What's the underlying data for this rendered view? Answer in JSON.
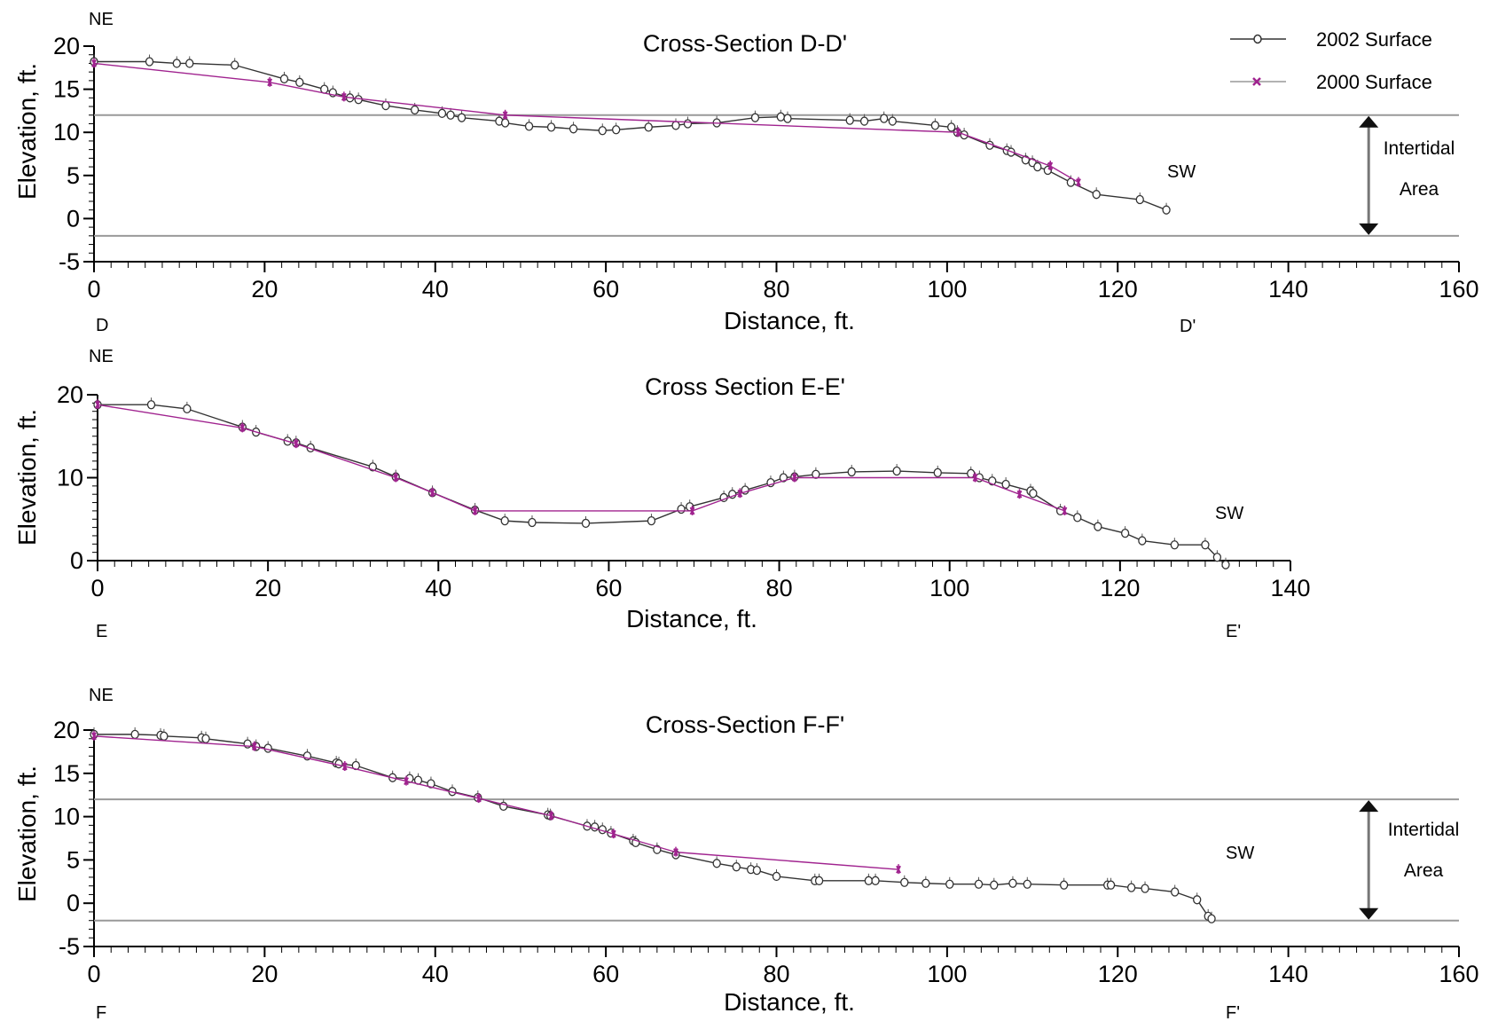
{
  "legend": {
    "items": [
      {
        "label": "2002 Surface",
        "color": "#333333",
        "marker": "circle"
      },
      {
        "label": "2000 Surface",
        "color": "#a0238f",
        "marker": "x"
      }
    ]
  },
  "colors": {
    "s2002": "#333333",
    "s2000": "#a0238f",
    "reference_line": "#999999"
  },
  "chart_data": [
    {
      "type": "line",
      "title": "Cross-Section D-D'",
      "xlabel": "Distance, ft.",
      "ylabel": "Elevation, ft.",
      "xlim": [
        0,
        160
      ],
      "ylim": [
        -5,
        20
      ],
      "xticks": [
        0,
        20,
        40,
        60,
        80,
        100,
        120,
        140,
        160
      ],
      "yticks": [
        -5,
        0,
        5,
        10,
        15,
        20
      ],
      "corner_labels": {
        "top_left": "NE",
        "bottom_left": "D",
        "right_upper": "SW",
        "bottom_right": "D'"
      },
      "reference_lines": [
        12,
        -2
      ],
      "annotation": {
        "lines": [
          "Intertidal",
          "Area"
        ],
        "x": 149,
        "from": 12,
        "to": -2
      },
      "series": [
        {
          "name": "2002 Surface",
          "x": [
            0,
            6.5,
            9.7,
            11.2,
            16.5,
            22.3,
            24.1,
            27,
            28,
            30,
            31,
            34.2,
            37.6,
            40.8,
            41.8,
            43.1,
            47.5,
            48.2,
            51,
            53.6,
            56.2,
            59.6,
            61.2,
            65,
            68.2,
            69.6,
            73,
            77.5,
            80.5,
            81.3,
            88.6,
            90.3,
            92.6,
            93.6,
            98.6,
            100.5,
            101.2,
            102,
            105,
            107,
            107.5,
            109.2,
            110,
            110.6,
            111.8,
            114.5,
            117.5,
            122.6,
            125.7
          ],
          "y": [
            18.2,
            18.2,
            18,
            18,
            17.8,
            16.2,
            15.8,
            15,
            14.6,
            14,
            13.8,
            13.1,
            12.6,
            12.2,
            12,
            11.7,
            11.3,
            11.1,
            10.7,
            10.6,
            10.4,
            10.2,
            10.3,
            10.6,
            10.8,
            11,
            11.1,
            11.7,
            11.8,
            11.6,
            11.4,
            11.3,
            11.6,
            11.3,
            10.8,
            10.6,
            10,
            9.7,
            8.5,
            7.9,
            7.7,
            6.8,
            6.5,
            6,
            5.6,
            4.2,
            2.8,
            2.2,
            1
          ]
        },
        {
          "name": "2000 Surface",
          "x": [
            0,
            20.6,
            29.3,
            48.2,
            101.3,
            112.1,
            115.4
          ],
          "y": [
            18,
            15.8,
            14.1,
            12,
            10,
            6.1,
            4.2
          ]
        }
      ]
    },
    {
      "type": "line",
      "title": "Cross Section E-E'",
      "xlabel": "Distance, ft.",
      "ylabel": "Elevation, ft.",
      "xlim": [
        0,
        140
      ],
      "ylim": [
        0,
        20
      ],
      "xticks": [
        0,
        20,
        40,
        60,
        80,
        100,
        120,
        140
      ],
      "yticks": [
        0,
        10,
        20
      ],
      "corner_labels": {
        "top_left": "NE",
        "bottom_left": "E",
        "right_upper": "SW",
        "bottom_right": "E'"
      },
      "reference_lines": [],
      "series": [
        {
          "name": "2002 Surface",
          "x": [
            0,
            6.3,
            10.5,
            17,
            18.6,
            22.3,
            23.3,
            25,
            32.3,
            35,
            39.3,
            44.3,
            47.8,
            51,
            57.3,
            65,
            68.5,
            69.5,
            73.5,
            74.5,
            76,
            79,
            80.5,
            81.8,
            84.3,
            88.5,
            93.8,
            98.6,
            102.5,
            103.5,
            105,
            106.6,
            109.5,
            109.8,
            113,
            115,
            117.4,
            120.6,
            122.6,
            126.4,
            130,
            131.4,
            132.4
          ],
          "y": [
            18.8,
            18.8,
            18.3,
            16.1,
            15.5,
            14.4,
            14.2,
            13.6,
            11.3,
            10.1,
            8.2,
            6.1,
            4.8,
            4.6,
            4.5,
            4.8,
            6.2,
            6.5,
            7.6,
            8,
            8.5,
            9.4,
            10,
            10.1,
            10.4,
            10.7,
            10.8,
            10.6,
            10.5,
            10,
            9.6,
            9.2,
            8.4,
            8.1,
            6,
            5.2,
            4.1,
            3.3,
            2.4,
            1.9,
            1.9,
            0.4,
            -0.5
          ]
        },
        {
          "name": "2000 Surface",
          "x": [
            0,
            17,
            23.3,
            35,
            39.3,
            44.3,
            69.8,
            75.4,
            81.8,
            103,
            108.2,
            113.5
          ],
          "y": [
            18.8,
            16,
            14.1,
            10,
            8.2,
            6,
            6,
            8.1,
            10,
            10,
            8,
            6
          ]
        }
      ]
    },
    {
      "type": "line",
      "title": "Cross-Section F-F'",
      "xlabel": "Distance, ft.",
      "ylabel": "Elevation, ft.",
      "xlim": [
        0,
        160
      ],
      "ylim": [
        -5,
        20
      ],
      "xticks": [
        0,
        20,
        40,
        60,
        80,
        100,
        120,
        140,
        160
      ],
      "yticks": [
        -5,
        0,
        5,
        10,
        15,
        20
      ],
      "corner_labels": {
        "top_left": "NE",
        "bottom_left": "F",
        "right_upper": "SW",
        "bottom_right": "F'"
      },
      "reference_lines": [
        12,
        -2
      ],
      "annotation": {
        "lines": [
          "Intertidal",
          "Area"
        ],
        "x": 149,
        "from": 12,
        "to": -2
      },
      "series": [
        {
          "name": "2002 Surface",
          "x": [
            0,
            4.8,
            7.8,
            8.2,
            12.6,
            13.1,
            18,
            19,
            20.4,
            25,
            28.4,
            28.7,
            30.7,
            35,
            37,
            38,
            39.5,
            42,
            45,
            48,
            53.2,
            53.5,
            57.8,
            58.7,
            59.6,
            60.6,
            63.2,
            63.5,
            66,
            68.2,
            73,
            75.3,
            77,
            77.7,
            80,
            84.5,
            85,
            90.8,
            91.6,
            95,
            97.5,
            100.3,
            103.7,
            105.5,
            107.7,
            109.4,
            113.7,
            118.8,
            119.2,
            121.6,
            123.2,
            126.7,
            129.3,
            130.6,
            131
          ],
          "y": [
            19.5,
            19.5,
            19.4,
            19.3,
            19.1,
            19,
            18.4,
            18.1,
            17.9,
            17,
            16.2,
            16.1,
            15.9,
            14.5,
            14.4,
            14.2,
            13.8,
            12.9,
            12.2,
            11.2,
            10.2,
            10.1,
            8.9,
            8.8,
            8.5,
            8.1,
            7.2,
            7,
            6.2,
            5.6,
            4.6,
            4.2,
            3.9,
            3.8,
            3.1,
            2.6,
            2.6,
            2.6,
            2.6,
            2.4,
            2.3,
            2.2,
            2.2,
            2.1,
            2.3,
            2.2,
            2.1,
            2.1,
            2.1,
            1.8,
            1.7,
            1.3,
            0.4,
            -1.5,
            -1.8
          ]
        },
        {
          "name": "2000 Surface",
          "x": [
            0,
            18.8,
            29.4,
            36.6,
            45.1,
            53.6,
            60.9,
            68.2,
            94.3
          ],
          "y": [
            19.3,
            18.1,
            15.8,
            14.1,
            12.1,
            10.1,
            8,
            5.9,
            3.9
          ]
        }
      ]
    }
  ]
}
